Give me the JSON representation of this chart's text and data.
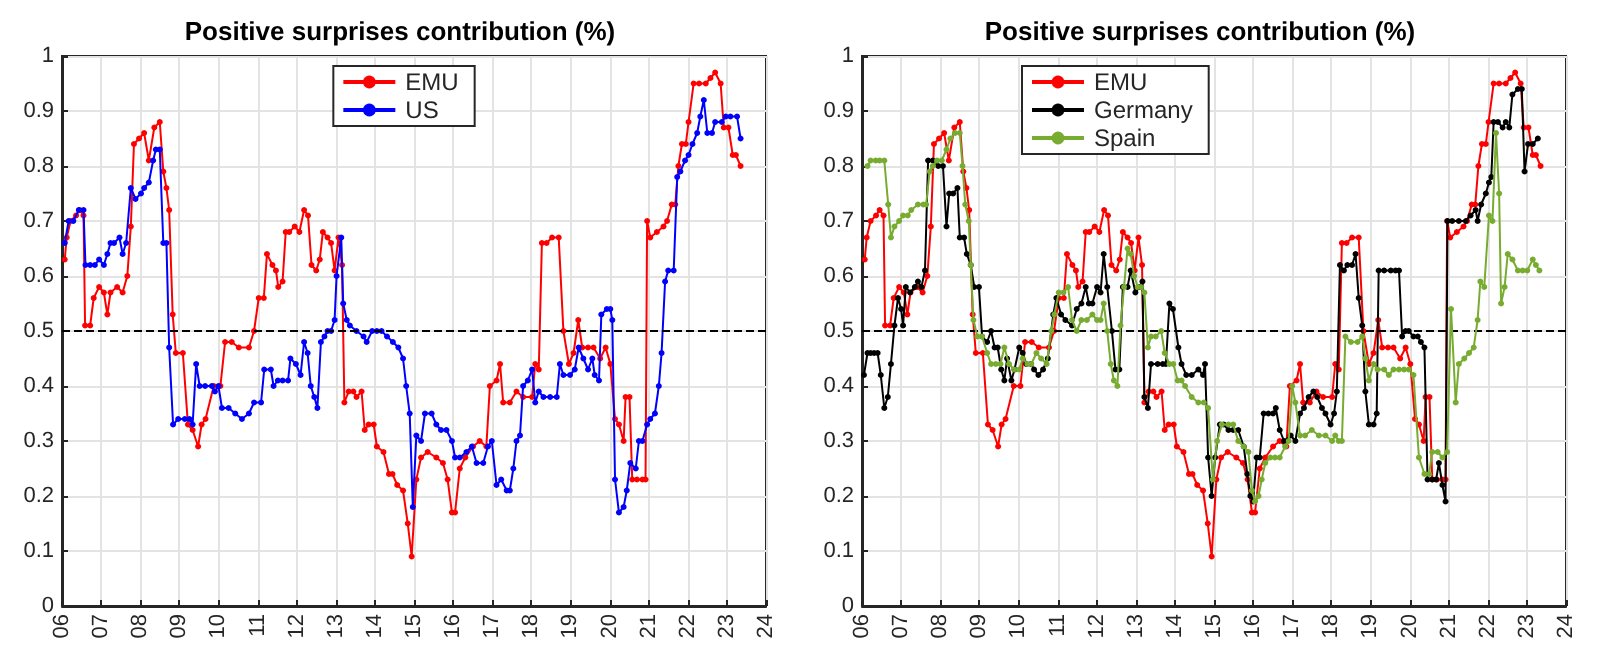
{
  "chart_data": [
    {
      "type": "line",
      "title": "Positive surprises contribution (%)",
      "xlim": [
        6,
        24
      ],
      "ylim": [
        0,
        1
      ],
      "xticks": [
        {
          "value": 6,
          "label": "06"
        },
        {
          "value": 7,
          "label": "07"
        },
        {
          "value": 8,
          "label": "08"
        },
        {
          "value": 9,
          "label": "09"
        },
        {
          "value": 10,
          "label": "10"
        },
        {
          "value": 11,
          "label": "11"
        },
        {
          "value": 12,
          "label": "12"
        },
        {
          "value": 13,
          "label": "13"
        },
        {
          "value": 14,
          "label": "14"
        },
        {
          "value": 15,
          "label": "15"
        },
        {
          "value": 16,
          "label": "16"
        },
        {
          "value": 17,
          "label": "17"
        },
        {
          "value": 18,
          "label": "18"
        },
        {
          "value": 19,
          "label": "19"
        },
        {
          "value": 20,
          "label": "20"
        },
        {
          "value": 21,
          "label": "21"
        },
        {
          "value": 22,
          "label": "22"
        },
        {
          "value": 23,
          "label": "23"
        },
        {
          "value": 24,
          "label": "24"
        }
      ],
      "yticks": [
        0,
        0.1,
        0.2,
        0.3,
        0.4,
        0.5,
        0.6,
        0.7,
        0.8,
        0.9,
        1
      ],
      "grid": true,
      "legend": "top",
      "marker": "circle",
      "line_style": "solid",
      "ref_lines": [
        {
          "axis": "y",
          "value": 0.5,
          "color": "#000000",
          "line_style": "dashed"
        }
      ],
      "series": [
        {
          "name": "EMU",
          "color": "#ff0000",
          "x": [
            6.07,
            6.12,
            6.22,
            6.36,
            6.45,
            6.55,
            6.59,
            6.72,
            6.81,
            6.95,
            7.07,
            7.16,
            7.24,
            7.41,
            7.55,
            7.67,
            7.76,
            7.84,
            7.97,
            8.1,
            8.22,
            8.36,
            8.5,
            8.59,
            8.67,
            8.74,
            8.83,
            8.91,
            9.09,
            9.22,
            9.34,
            9.48,
            9.57,
            9.67,
            9.88,
            10.05,
            10.17,
            10.34,
            10.52,
            10.78,
            10.91,
            11.03,
            11.16,
            11.24,
            11.38,
            11.47,
            11.53,
            11.64,
            11.72,
            11.81,
            11.95,
            12.07,
            12.19,
            12.29,
            12.38,
            12.5,
            12.59,
            12.67,
            12.79,
            12.88,
            12.97,
            13.07,
            13.16,
            13.22,
            13.33,
            13.45,
            13.53,
            13.66,
            13.74,
            13.84,
            13.97,
            14.05,
            14.22,
            14.36,
            14.45,
            14.57,
            14.72,
            14.84,
            14.94,
            15.06,
            15.18,
            15.35,
            15.57,
            15.74,
            15.86,
            15.97,
            16.05,
            16.17,
            16.31,
            16.51,
            16.68,
            16.85,
            16.94,
            17.11,
            17.2,
            17.28,
            17.45,
            17.62,
            17.79,
            18.02,
            18.1,
            18.19,
            18.27,
            18.39,
            18.53,
            18.7,
            18.82,
            18.96,
            19.08,
            19.2,
            19.3,
            19.45,
            19.59,
            19.76,
            19.9,
            20.02,
            20.14,
            20.24,
            20.36,
            20.41,
            20.51,
            20.58,
            20.7,
            20.84,
            20.92,
            20.96,
            21.04,
            21.21,
            21.38,
            21.47,
            21.59,
            21.68,
            21.76,
            21.85,
            21.95,
            22.02,
            22.15,
            22.29,
            22.46,
            22.58,
            22.7,
            22.84,
            22.92,
            23.04,
            23.15,
            23.23,
            23.35
          ],
          "values": [
            0.63,
            0.67,
            0.7,
            0.71,
            0.72,
            0.71,
            0.51,
            0.51,
            0.56,
            0.58,
            0.57,
            0.53,
            0.57,
            0.58,
            0.57,
            0.6,
            0.69,
            0.84,
            0.85,
            0.86,
            0.81,
            0.87,
            0.88,
            0.79,
            0.76,
            0.72,
            0.53,
            0.46,
            0.46,
            0.33,
            0.32,
            0.29,
            0.33,
            0.34,
            0.4,
            0.4,
            0.48,
            0.48,
            0.47,
            0.47,
            0.5,
            0.56,
            0.56,
            0.64,
            0.62,
            0.61,
            0.58,
            0.59,
            0.68,
            0.68,
            0.69,
            0.68,
            0.72,
            0.71,
            0.62,
            0.61,
            0.63,
            0.68,
            0.67,
            0.66,
            0.61,
            0.67,
            0.62,
            0.37,
            0.39,
            0.39,
            0.38,
            0.39,
            0.32,
            0.33,
            0.33,
            0.29,
            0.28,
            0.24,
            0.24,
            0.22,
            0.21,
            0.15,
            0.09,
            0.23,
            0.27,
            0.28,
            0.27,
            0.26,
            0.23,
            0.17,
            0.17,
            0.25,
            0.27,
            0.29,
            0.3,
            0.29,
            0.4,
            0.41,
            0.44,
            0.37,
            0.37,
            0.39,
            0.38,
            0.38,
            0.44,
            0.43,
            0.66,
            0.66,
            0.67,
            0.67,
            0.5,
            0.44,
            0.46,
            0.52,
            0.47,
            0.47,
            0.47,
            0.45,
            0.47,
            0.44,
            0.34,
            0.33,
            0.3,
            0.38,
            0.38,
            0.23,
            0.23,
            0.23,
            0.23,
            0.7,
            0.67,
            0.68,
            0.69,
            0.7,
            0.73,
            0.73,
            0.8,
            0.84,
            0.84,
            0.88,
            0.95,
            0.95,
            0.95,
            0.96,
            0.97,
            0.95,
            0.87,
            0.87,
            0.82,
            0.82,
            0.8
          ]
        },
        {
          "name": "US",
          "color": "#0000ff",
          "x": [
            6.07,
            6.17,
            6.29,
            6.43,
            6.55,
            6.6,
            6.72,
            6.84,
            6.95,
            7.07,
            7.16,
            7.24,
            7.33,
            7.47,
            7.55,
            7.64,
            7.76,
            7.88,
            8.02,
            8.1,
            8.22,
            8.33,
            8.4,
            8.5,
            8.59,
            8.67,
            8.74,
            8.84,
            8.97,
            9.14,
            9.26,
            9.34,
            9.43,
            9.52,
            9.66,
            9.83,
            9.91,
            10.0,
            10.09,
            10.26,
            10.43,
            10.6,
            10.78,
            10.91,
            11.09,
            11.17,
            11.34,
            11.41,
            11.52,
            11.64,
            11.78,
            11.84,
            11.98,
            12.1,
            12.19,
            12.28,
            12.36,
            12.45,
            12.53,
            12.62,
            12.71,
            12.79,
            12.88,
            12.97,
            13.02,
            13.14,
            13.19,
            13.28,
            13.36,
            13.53,
            13.71,
            13.79,
            13.93,
            14.05,
            14.17,
            14.31,
            14.46,
            14.6,
            14.72,
            14.8,
            14.89,
            14.97,
            15.06,
            15.18,
            15.28,
            15.45,
            15.57,
            15.69,
            15.83,
            15.97,
            16.05,
            16.17,
            16.34,
            16.48,
            16.6,
            16.77,
            16.89,
            16.99,
            17.11,
            17.23,
            17.37,
            17.45,
            17.54,
            17.62,
            17.71,
            17.79,
            17.91,
            18.02,
            18.1,
            18.19,
            18.31,
            18.48,
            18.65,
            18.73,
            18.82,
            18.99,
            19.11,
            19.21,
            19.33,
            19.45,
            19.56,
            19.62,
            19.73,
            19.79,
            19.93,
            20.02,
            20.07,
            20.14,
            20.24,
            20.36,
            20.44,
            20.53,
            20.67,
            20.75,
            20.84,
            20.96,
            21.04,
            21.16,
            21.26,
            21.33,
            21.42,
            21.5,
            21.64,
            21.73,
            21.81,
            21.93,
            22.02,
            22.12,
            22.24,
            22.32,
            22.41,
            22.5,
            22.62,
            22.7,
            22.87,
            22.97,
            23.09,
            23.26,
            23.35
          ],
          "values": [
            0.66,
            0.7,
            0.7,
            0.72,
            0.72,
            0.62,
            0.62,
            0.62,
            0.63,
            0.62,
            0.64,
            0.66,
            0.66,
            0.67,
            0.64,
            0.66,
            0.76,
            0.74,
            0.75,
            0.76,
            0.77,
            0.81,
            0.83,
            0.83,
            0.66,
            0.66,
            0.47,
            0.33,
            0.34,
            0.34,
            0.34,
            0.33,
            0.44,
            0.4,
            0.4,
            0.4,
            0.39,
            0.4,
            0.36,
            0.36,
            0.35,
            0.34,
            0.35,
            0.37,
            0.37,
            0.43,
            0.43,
            0.4,
            0.41,
            0.41,
            0.41,
            0.45,
            0.44,
            0.42,
            0.48,
            0.46,
            0.4,
            0.38,
            0.36,
            0.48,
            0.49,
            0.5,
            0.5,
            0.52,
            0.6,
            0.67,
            0.55,
            0.52,
            0.51,
            0.5,
            0.49,
            0.48,
            0.5,
            0.5,
            0.5,
            0.49,
            0.48,
            0.47,
            0.45,
            0.4,
            0.35,
            0.18,
            0.31,
            0.3,
            0.35,
            0.35,
            0.33,
            0.32,
            0.32,
            0.3,
            0.27,
            0.27,
            0.28,
            0.29,
            0.26,
            0.26,
            0.29,
            0.3,
            0.22,
            0.23,
            0.21,
            0.21,
            0.25,
            0.3,
            0.31,
            0.4,
            0.41,
            0.43,
            0.37,
            0.39,
            0.38,
            0.38,
            0.38,
            0.44,
            0.42,
            0.42,
            0.43,
            0.47,
            0.45,
            0.43,
            0.45,
            0.42,
            0.41,
            0.53,
            0.54,
            0.54,
            0.52,
            0.23,
            0.17,
            0.18,
            0.21,
            0.26,
            0.25,
            0.3,
            0.3,
            0.33,
            0.34,
            0.35,
            0.4,
            0.46,
            0.59,
            0.61,
            0.61,
            0.78,
            0.79,
            0.81,
            0.82,
            0.84,
            0.86,
            0.89,
            0.92,
            0.86,
            0.86,
            0.88,
            0.88,
            0.89,
            0.89,
            0.89,
            0.85
          ]
        }
      ]
    },
    {
      "type": "line",
      "title": "Positive surprises contribution (%)",
      "xlim": [
        6,
        24
      ],
      "ylim": [
        0,
        1
      ],
      "xticks": [
        {
          "value": 6,
          "label": "06"
        },
        {
          "value": 7,
          "label": "07"
        },
        {
          "value": 8,
          "label": "08"
        },
        {
          "value": 9,
          "label": "09"
        },
        {
          "value": 10,
          "label": "10"
        },
        {
          "value": 11,
          "label": "11"
        },
        {
          "value": 12,
          "label": "12"
        },
        {
          "value": 13,
          "label": "13"
        },
        {
          "value": 14,
          "label": "14"
        },
        {
          "value": 15,
          "label": "15"
        },
        {
          "value": 16,
          "label": "16"
        },
        {
          "value": 17,
          "label": "17"
        },
        {
          "value": 18,
          "label": "18"
        },
        {
          "value": 19,
          "label": "19"
        },
        {
          "value": 20,
          "label": "20"
        },
        {
          "value": 21,
          "label": "21"
        },
        {
          "value": 22,
          "label": "22"
        },
        {
          "value": 23,
          "label": "23"
        },
        {
          "value": 24,
          "label": "24"
        }
      ],
      "yticks": [
        0,
        0.1,
        0.2,
        0.3,
        0.4,
        0.5,
        0.6,
        0.7,
        0.8,
        0.9,
        1
      ],
      "grid": true,
      "legend": "top left",
      "marker": "circle",
      "line_style": "solid",
      "ref_lines": [
        {
          "axis": "y",
          "value": 0.5,
          "color": "#000000",
          "line_style": "dashed"
        }
      ],
      "series": [
        {
          "name": "EMU",
          "color": "#ff0000",
          "x": [
            6.07,
            6.12,
            6.22,
            6.36,
            6.45,
            6.55,
            6.59,
            6.72,
            6.81,
            6.95,
            7.07,
            7.16,
            7.24,
            7.41,
            7.55,
            7.67,
            7.76,
            7.84,
            7.97,
            8.1,
            8.22,
            8.36,
            8.5,
            8.59,
            8.67,
            8.74,
            8.83,
            8.91,
            9.09,
            9.22,
            9.34,
            9.48,
            9.57,
            9.67,
            9.88,
            10.05,
            10.17,
            10.34,
            10.52,
            10.78,
            10.91,
            11.03,
            11.16,
            11.24,
            11.38,
            11.47,
            11.53,
            11.64,
            11.72,
            11.81,
            11.95,
            12.07,
            12.19,
            12.29,
            12.38,
            12.5,
            12.59,
            12.67,
            12.79,
            12.88,
            12.97,
            13.07,
            13.16,
            13.22,
            13.33,
            13.45,
            13.53,
            13.66,
            13.74,
            13.84,
            13.97,
            14.05,
            14.22,
            14.36,
            14.45,
            14.57,
            14.72,
            14.84,
            14.94,
            15.06,
            15.18,
            15.35,
            15.57,
            15.74,
            15.86,
            15.97,
            16.05,
            16.17,
            16.31,
            16.51,
            16.68,
            16.85,
            16.94,
            17.11,
            17.2,
            17.28,
            17.45,
            17.62,
            17.79,
            18.02,
            18.1,
            18.19,
            18.27,
            18.39,
            18.53,
            18.7,
            18.82,
            18.96,
            19.08,
            19.2,
            19.3,
            19.45,
            19.59,
            19.76,
            19.9,
            20.02,
            20.14,
            20.24,
            20.36,
            20.41,
            20.51,
            20.58,
            20.7,
            20.84,
            20.92,
            20.96,
            21.04,
            21.21,
            21.38,
            21.47,
            21.59,
            21.68,
            21.76,
            21.85,
            21.95,
            22.02,
            22.15,
            22.29,
            22.46,
            22.58,
            22.7,
            22.84,
            22.92,
            23.04,
            23.15,
            23.23,
            23.35
          ],
          "values": [
            0.63,
            0.67,
            0.7,
            0.71,
            0.72,
            0.71,
            0.51,
            0.51,
            0.56,
            0.58,
            0.57,
            0.53,
            0.57,
            0.58,
            0.57,
            0.6,
            0.69,
            0.84,
            0.85,
            0.86,
            0.81,
            0.87,
            0.88,
            0.79,
            0.76,
            0.72,
            0.53,
            0.46,
            0.46,
            0.33,
            0.32,
            0.29,
            0.33,
            0.34,
            0.4,
            0.4,
            0.48,
            0.48,
            0.47,
            0.47,
            0.5,
            0.56,
            0.56,
            0.64,
            0.62,
            0.61,
            0.58,
            0.59,
            0.68,
            0.68,
            0.69,
            0.68,
            0.72,
            0.71,
            0.62,
            0.61,
            0.63,
            0.68,
            0.67,
            0.66,
            0.61,
            0.67,
            0.62,
            0.37,
            0.39,
            0.39,
            0.38,
            0.39,
            0.32,
            0.33,
            0.33,
            0.29,
            0.28,
            0.24,
            0.24,
            0.22,
            0.21,
            0.15,
            0.09,
            0.23,
            0.27,
            0.28,
            0.27,
            0.26,
            0.23,
            0.17,
            0.17,
            0.25,
            0.27,
            0.29,
            0.3,
            0.29,
            0.4,
            0.41,
            0.44,
            0.37,
            0.37,
            0.39,
            0.38,
            0.38,
            0.44,
            0.43,
            0.66,
            0.66,
            0.67,
            0.67,
            0.5,
            0.44,
            0.46,
            0.52,
            0.47,
            0.47,
            0.47,
            0.45,
            0.47,
            0.44,
            0.34,
            0.33,
            0.3,
            0.38,
            0.38,
            0.23,
            0.23,
            0.23,
            0.23,
            0.7,
            0.67,
            0.68,
            0.69,
            0.7,
            0.73,
            0.73,
            0.8,
            0.84,
            0.84,
            0.88,
            0.95,
            0.95,
            0.95,
            0.96,
            0.97,
            0.95,
            0.87,
            0.87,
            0.82,
            0.82,
            0.8
          ]
        },
        {
          "name": "Germany",
          "color": "#000000",
          "x": [
            6.05,
            6.14,
            6.22,
            6.31,
            6.4,
            6.48,
            6.57,
            6.66,
            6.74,
            6.83,
            6.92,
            7.0,
            7.05,
            7.12,
            7.23,
            7.35,
            7.43,
            7.52,
            7.61,
            7.69,
            7.81,
            7.95,
            8.07,
            8.16,
            8.23,
            8.33,
            8.44,
            8.5,
            8.61,
            8.68,
            8.78,
            8.87,
            8.99,
            9.07,
            9.2,
            9.3,
            9.39,
            9.47,
            9.56,
            9.64,
            9.71,
            9.82,
            9.9,
            10.02,
            10.11,
            10.2,
            10.32,
            10.4,
            10.51,
            10.63,
            10.75,
            10.89,
            10.97,
            11.09,
            11.2,
            11.37,
            11.49,
            11.61,
            11.72,
            11.8,
            11.89,
            12.01,
            12.1,
            12.18,
            12.27,
            12.39,
            12.48,
            12.58,
            12.67,
            12.79,
            12.87,
            12.99,
            13.1,
            13.17,
            13.22,
            13.31,
            13.39,
            13.56,
            13.69,
            13.77,
            13.86,
            13.95,
            14.09,
            14.17,
            14.29,
            14.43,
            14.6,
            14.72,
            14.77,
            14.85,
            14.94,
            15.03,
            15.15,
            15.25,
            15.37,
            15.49,
            15.62,
            15.76,
            15.85,
            15.93,
            16.0,
            16.09,
            16.17,
            16.27,
            16.39,
            16.51,
            16.58,
            16.68,
            16.79,
            16.96,
            17.08,
            17.2,
            17.3,
            17.42,
            17.54,
            17.64,
            17.76,
            17.85,
            17.98,
            18.07,
            18.14,
            18.22,
            18.32,
            18.41,
            18.53,
            18.62,
            18.7,
            18.79,
            18.87,
            18.96,
            19.08,
            19.16,
            19.21,
            19.35,
            19.52,
            19.64,
            19.73,
            19.81,
            19.9,
            19.98,
            20.1,
            20.21,
            20.29,
            20.38,
            20.46,
            20.58,
            20.68,
            20.75,
            20.84,
            20.92,
            20.97,
            21.09,
            21.26,
            21.44,
            21.56,
            21.69,
            21.74,
            21.83,
            21.95,
            22.03,
            22.09,
            22.15,
            22.26,
            22.38,
            22.46,
            22.55,
            22.63,
            22.77,
            22.87,
            22.94,
            23.03,
            23.15,
            23.28
          ],
          "values": [
            0.42,
            0.46,
            0.46,
            0.46,
            0.46,
            0.42,
            0.36,
            0.38,
            0.44,
            0.51,
            0.56,
            0.54,
            0.51,
            0.58,
            0.57,
            0.58,
            0.59,
            0.58,
            0.61,
            0.81,
            0.81,
            0.8,
            0.8,
            0.69,
            0.75,
            0.75,
            0.76,
            0.67,
            0.67,
            0.64,
            0.62,
            0.58,
            0.58,
            0.49,
            0.48,
            0.5,
            0.47,
            0.47,
            0.43,
            0.41,
            0.45,
            0.41,
            0.43,
            0.47,
            0.46,
            0.44,
            0.44,
            0.43,
            0.42,
            0.43,
            0.45,
            0.53,
            0.56,
            0.53,
            0.52,
            0.51,
            0.54,
            0.55,
            0.58,
            0.55,
            0.55,
            0.58,
            0.57,
            0.64,
            0.58,
            0.5,
            0.43,
            0.43,
            0.58,
            0.58,
            0.61,
            0.57,
            0.58,
            0.59,
            0.38,
            0.36,
            0.44,
            0.44,
            0.44,
            0.44,
            0.55,
            0.54,
            0.47,
            0.44,
            0.42,
            0.42,
            0.43,
            0.42,
            0.44,
            0.27,
            0.2,
            0.27,
            0.33,
            0.33,
            0.32,
            0.32,
            0.32,
            0.29,
            0.24,
            0.2,
            0.19,
            0.27,
            0.27,
            0.35,
            0.35,
            0.35,
            0.36,
            0.32,
            0.3,
            0.31,
            0.3,
            0.35,
            0.36,
            0.38,
            0.39,
            0.38,
            0.36,
            0.35,
            0.33,
            0.35,
            0.39,
            0.62,
            0.61,
            0.62,
            0.62,
            0.64,
            0.56,
            0.51,
            0.39,
            0.33,
            0.33,
            0.35,
            0.61,
            0.61,
            0.61,
            0.61,
            0.61,
            0.49,
            0.5,
            0.5,
            0.49,
            0.49,
            0.48,
            0.47,
            0.23,
            0.23,
            0.23,
            0.26,
            0.22,
            0.19,
            0.7,
            0.7,
            0.7,
            0.7,
            0.71,
            0.72,
            0.7,
            0.73,
            0.75,
            0.77,
            0.78,
            0.88,
            0.88,
            0.87,
            0.88,
            0.87,
            0.93,
            0.94,
            0.94,
            0.79,
            0.84,
            0.84,
            0.85
          ]
        },
        {
          "name": "Spain",
          "color": "#77ac30",
          "x": [
            6.14,
            6.22,
            6.35,
            6.45,
            6.57,
            6.67,
            6.74,
            6.83,
            6.95,
            7.05,
            7.17,
            7.26,
            7.43,
            7.57,
            7.64,
            7.73,
            7.81,
            7.92,
            8.04,
            8.16,
            8.26,
            8.38,
            8.5,
            8.57,
            8.64,
            8.73,
            8.78,
            8.85,
            8.95,
            9.07,
            9.2,
            9.3,
            9.42,
            9.54,
            9.64,
            9.76,
            9.89,
            10.02,
            10.11,
            10.23,
            10.33,
            10.46,
            10.58,
            10.72,
            10.84,
            10.92,
            11.03,
            11.15,
            11.27,
            11.37,
            11.49,
            11.61,
            11.75,
            11.89,
            12.01,
            12.1,
            12.18,
            12.27,
            12.36,
            12.44,
            12.53,
            12.61,
            12.7,
            12.79,
            12.87,
            12.96,
            13.05,
            13.13,
            13.22,
            13.31,
            13.39,
            13.51,
            13.65,
            13.74,
            13.86,
            13.96,
            14.07,
            14.17,
            14.26,
            14.43,
            14.6,
            14.74,
            14.85,
            14.97,
            15.08,
            15.2,
            15.37,
            15.49,
            15.62,
            15.76,
            15.88,
            15.97,
            16.05,
            16.14,
            16.22,
            16.31,
            16.44,
            16.56,
            16.68,
            16.82,
            16.91,
            17.0,
            17.08,
            17.2,
            17.33,
            17.5,
            17.68,
            17.85,
            18.02,
            18.1,
            18.19,
            18.27,
            18.36,
            18.5,
            18.67,
            18.79,
            18.87,
            18.96,
            19.08,
            19.18,
            19.35,
            19.47,
            19.59,
            19.73,
            19.86,
            19.98,
            20.1,
            20.24,
            20.38,
            20.5,
            20.58,
            20.72,
            20.84,
            20.96,
            21.06,
            21.18,
            21.26,
            21.4,
            21.52,
            21.64,
            21.74,
            21.81,
            21.91,
            22.03,
            22.12,
            22.21,
            22.29,
            22.34,
            22.43,
            22.51,
            22.63,
            22.77,
            22.89,
            23.01,
            23.15,
            23.23,
            23.32
          ],
          "values": [
            0.8,
            0.81,
            0.81,
            0.81,
            0.81,
            0.73,
            0.67,
            0.69,
            0.7,
            0.71,
            0.71,
            0.72,
            0.73,
            0.73,
            0.73,
            0.79,
            0.8,
            0.81,
            0.81,
            0.83,
            0.85,
            0.86,
            0.86,
            0.8,
            0.73,
            0.7,
            0.62,
            0.52,
            0.49,
            0.49,
            0.46,
            0.44,
            0.44,
            0.44,
            0.47,
            0.44,
            0.43,
            0.43,
            0.45,
            0.44,
            0.44,
            0.46,
            0.45,
            0.44,
            0.5,
            0.53,
            0.57,
            0.57,
            0.58,
            0.52,
            0.5,
            0.52,
            0.52,
            0.53,
            0.52,
            0.52,
            0.55,
            0.5,
            0.44,
            0.41,
            0.4,
            0.51,
            0.58,
            0.65,
            0.64,
            0.6,
            0.58,
            0.58,
            0.57,
            0.47,
            0.49,
            0.49,
            0.5,
            0.46,
            0.44,
            0.44,
            0.41,
            0.41,
            0.4,
            0.38,
            0.37,
            0.37,
            0.36,
            0.23,
            0.3,
            0.33,
            0.33,
            0.33,
            0.3,
            0.29,
            0.28,
            0.21,
            0.19,
            0.2,
            0.23,
            0.26,
            0.27,
            0.27,
            0.27,
            0.29,
            0.3,
            0.4,
            0.37,
            0.31,
            0.31,
            0.32,
            0.31,
            0.31,
            0.3,
            0.31,
            0.3,
            0.3,
            0.49,
            0.48,
            0.48,
            0.49,
            0.45,
            0.41,
            0.44,
            0.43,
            0.43,
            0.42,
            0.43,
            0.43,
            0.43,
            0.43,
            0.42,
            0.27,
            0.24,
            0.24,
            0.28,
            0.28,
            0.27,
            0.28,
            0.54,
            0.37,
            0.44,
            0.45,
            0.46,
            0.47,
            0.52,
            0.59,
            0.58,
            0.71,
            0.7,
            0.86,
            0.75,
            0.55,
            0.58,
            0.64,
            0.63,
            0.61,
            0.61,
            0.61,
            0.63,
            0.62,
            0.61
          ]
        }
      ]
    }
  ]
}
